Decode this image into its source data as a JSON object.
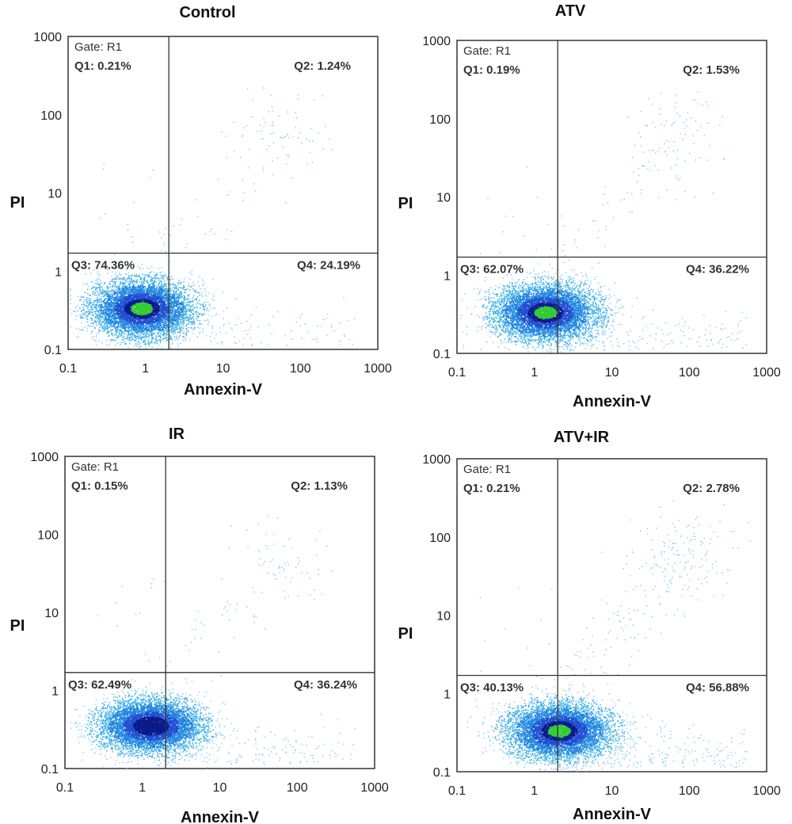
{
  "chart_data": [
    {
      "type": "scatter",
      "title": "Control",
      "xlabel": "Annexin-V",
      "ylabel": "PI",
      "xscale": "log",
      "yscale": "log",
      "xlim": [
        0.1,
        1000
      ],
      "ylim": [
        0.1,
        1000
      ],
      "x_ticks": [
        "0.1",
        "1",
        "10",
        "100",
        "1000"
      ],
      "y_ticks": [
        "0.1",
        "1",
        "10",
        "100",
        "1000"
      ],
      "gate": "Gate: R1",
      "quadrant_x": 2,
      "quadrant_y": 1.7,
      "quadrants": {
        "Q1": "Q1: 0.21%",
        "Q2": "Q2: 1.24%",
        "Q3": "Q3: 74.36%",
        "Q4": "Q4: 24.19%"
      },
      "quadrant_values": {
        "Q1": 0.21,
        "Q2": 1.24,
        "Q3": 74.36,
        "Q4": 24.19
      },
      "main_cluster": {
        "x_center": 0.9,
        "y_center": 0.33,
        "x_spread": 0.32,
        "y_spread": 0.18
      },
      "upper_cluster": {
        "x_center": 60,
        "y_center": 60
      }
    },
    {
      "type": "scatter",
      "title": "ATV",
      "xlabel": "Annexin-V",
      "ylabel": "PI",
      "xscale": "log",
      "yscale": "log",
      "xlim": [
        0.1,
        1000
      ],
      "ylim": [
        0.1,
        1000
      ],
      "x_ticks": [
        "0.1",
        "1",
        "10",
        "100",
        "1000"
      ],
      "y_ticks": [
        "0.1",
        "1",
        "10",
        "100",
        "1000"
      ],
      "gate": "Gate: R1",
      "quadrant_x": 2,
      "quadrant_y": 1.7,
      "quadrants": {
        "Q1": "Q1: 0.19%",
        "Q2": "Q2: 1.53%",
        "Q3": "Q3: 62.07%",
        "Q4": "Q4: 36.22%"
      },
      "quadrant_values": {
        "Q1": 0.19,
        "Q2": 1.53,
        "Q3": 62.07,
        "Q4": 36.22
      },
      "main_cluster": {
        "x_center": 1.4,
        "y_center": 0.33,
        "x_spread": 0.33,
        "y_spread": 0.18
      },
      "upper_cluster": {
        "x_center": 70,
        "y_center": 60
      }
    },
    {
      "type": "scatter",
      "title": "IR",
      "xlabel": "Annexin-V",
      "ylabel": "PI",
      "xscale": "log",
      "yscale": "log",
      "xlim": [
        0.1,
        1000
      ],
      "ylim": [
        0.1,
        1000
      ],
      "x_ticks": [
        "0.1",
        "1",
        "10",
        "100",
        "1000"
      ],
      "y_ticks": [
        "0.1",
        "1",
        "10",
        "100",
        "1000"
      ],
      "gate": "Gate: R1",
      "quadrant_x": 2,
      "quadrant_y": 1.7,
      "quadrants": {
        "Q1": "Q1: 0.15%",
        "Q2": "Q2: 1.13%",
        "Q3": "Q3: 62.49%",
        "Q4": "Q4: 36.24%"
      },
      "quadrant_values": {
        "Q1": 0.15,
        "Q2": 1.13,
        "Q3": 62.49,
        "Q4": 36.24
      },
      "main_cluster": {
        "x_center": 1.3,
        "y_center": 0.35,
        "x_spread": 0.33,
        "y_spread": 0.17
      },
      "upper_cluster": {
        "x_center": 60,
        "y_center": 45
      }
    },
    {
      "type": "scatter",
      "title": "ATV+IR",
      "xlabel": "Annexin-V",
      "ylabel": "PI",
      "xscale": "log",
      "yscale": "log",
      "xlim": [
        0.1,
        1000
      ],
      "ylim": [
        0.1,
        1000
      ],
      "x_ticks": [
        "0.1",
        "1",
        "10",
        "100",
        "1000"
      ],
      "y_ticks": [
        "0.1",
        "1",
        "10",
        "100",
        "1000"
      ],
      "gate": "Gate: R1",
      "quadrant_x": 2,
      "quadrant_y": 1.7,
      "quadrants": {
        "Q1": "Q1: 0.21%",
        "Q2": "Q2: 2.78%",
        "Q3": "Q3: 40.13%",
        "Q4": "Q4: 56.88%"
      },
      "quadrant_values": {
        "Q1": 0.21,
        "Q2": 2.78,
        "Q3": 40.13,
        "Q4": 56.88
      },
      "main_cluster": {
        "x_center": 2.1,
        "y_center": 0.33,
        "x_spread": 0.33,
        "y_spread": 0.18
      },
      "upper_cluster": {
        "x_center": 80,
        "y_center": 60
      }
    }
  ]
}
